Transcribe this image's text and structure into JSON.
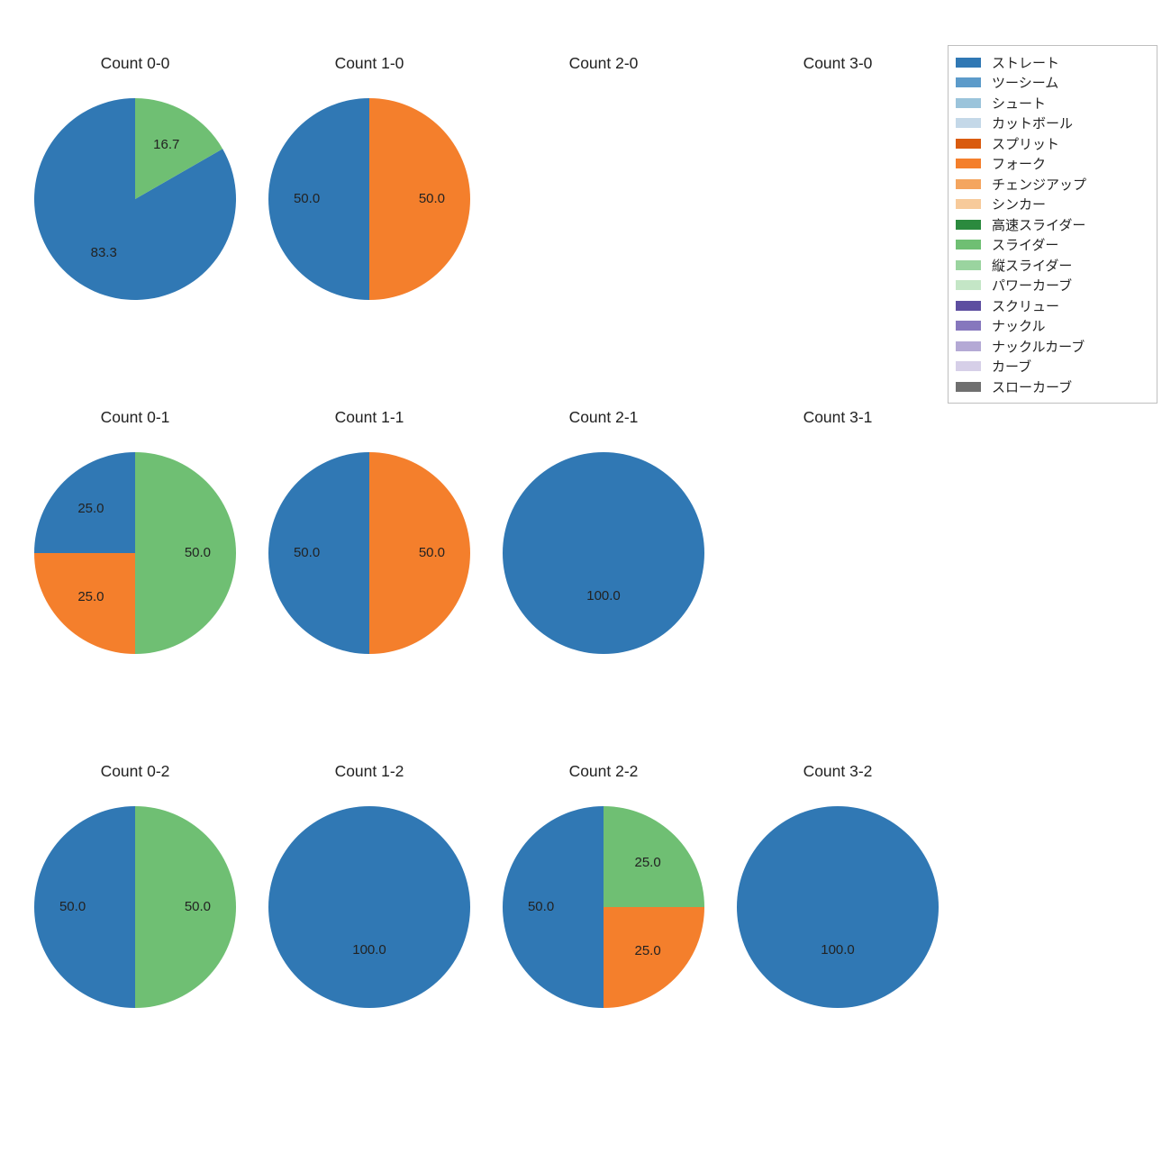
{
  "palette": {
    "ストレート": "#3078b4",
    "ツーシーム": "#5c9bca",
    "シュート": "#9bc4db",
    "カットボール": "#c4d8e8",
    "スプリット": "#d95b0f",
    "フォーク": "#f47f2c",
    "チェンジアップ": "#f4a55f",
    "シンカー": "#f7ca9a",
    "高速スライダー": "#2b8a3e",
    "スライダー": "#6fbf73",
    "縦スライダー": "#9ad49f",
    "パワーカーブ": "#c4e6c6",
    "スクリュー": "#5d4ea0",
    "ナックル": "#8677bd",
    "ナックルカーブ": "#b4a9d5",
    "カーブ": "#d6cfe8",
    "スローカーブ": "#6f6f6f"
  },
  "legend_order": [
    "ストレート",
    "ツーシーム",
    "シュート",
    "カットボール",
    "スプリット",
    "フォーク",
    "チェンジアップ",
    "シンカー",
    "高速スライダー",
    "スライダー",
    "縦スライダー",
    "パワーカーブ",
    "スクリュー",
    "ナックル",
    "ナックルカーブ",
    "カーブ",
    "スローカーブ"
  ],
  "grid": {
    "rows": 3,
    "cols": 4,
    "cell_titles": [
      [
        "Count 0-0",
        "Count 1-0",
        "Count 2-0",
        "Count 3-0"
      ],
      [
        "Count 0-1",
        "Count 1-1",
        "Count 2-1",
        "Count 3-1"
      ],
      [
        "Count 0-2",
        "Count 1-2",
        "Count 2-2",
        "Count 3-2"
      ]
    ]
  },
  "pies": {
    "Count 0-0": [
      {
        "pitch": "ストレート",
        "value": 83.3
      },
      {
        "pitch": "スライダー",
        "value": 16.7
      }
    ],
    "Count 1-0": [
      {
        "pitch": "ストレート",
        "value": 50.0
      },
      {
        "pitch": "フォーク",
        "value": 50.0
      }
    ],
    "Count 2-0": [],
    "Count 3-0": [],
    "Count 0-1": [
      {
        "pitch": "ストレート",
        "value": 25.0
      },
      {
        "pitch": "フォーク",
        "value": 25.0
      },
      {
        "pitch": "スライダー",
        "value": 50.0
      }
    ],
    "Count 1-1": [
      {
        "pitch": "ストレート",
        "value": 50.0
      },
      {
        "pitch": "フォーク",
        "value": 50.0
      }
    ],
    "Count 2-1": [
      {
        "pitch": "ストレート",
        "value": 100.0
      }
    ],
    "Count 3-1": [],
    "Count 0-2": [
      {
        "pitch": "ストレート",
        "value": 50.0
      },
      {
        "pitch": "スライダー",
        "value": 50.0
      }
    ],
    "Count 1-2": [
      {
        "pitch": "ストレート",
        "value": 100.0
      }
    ],
    "Count 2-2": [
      {
        "pitch": "ストレート",
        "value": 50.0
      },
      {
        "pitch": "フォーク",
        "value": 25.0
      },
      {
        "pitch": "スライダー",
        "value": 25.0
      }
    ],
    "Count 3-2": [
      {
        "pitch": "ストレート",
        "value": 100.0
      }
    ]
  },
  "style": {
    "pie_radius": 112,
    "label_radius_factor": 0.62,
    "single_slice_label_offset_y": 48,
    "title_fontsize": 17.5,
    "label_fontsize": 15,
    "legend_fontsize": 15,
    "background_color": "#ffffff",
    "start_angle_deg": 90,
    "direction": "counterclockwise"
  }
}
